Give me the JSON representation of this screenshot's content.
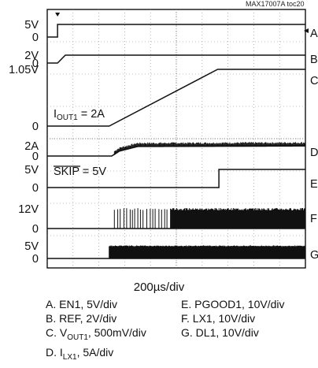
{
  "chart_data": {
    "type": "line",
    "figure_tag": "MAX17007A toc20",
    "timebase": "200µs/div",
    "time_divisions": 10,
    "x_range_us": [
      0,
      2000
    ],
    "grid": true,
    "y_labels": [
      {
        "text": "5V",
        "ref": "A"
      },
      {
        "text": "0",
        "ref": "A0"
      },
      {
        "text": "2V",
        "ref": "B"
      },
      {
        "text": "0",
        "ref": "B0"
      },
      {
        "text": "1.05V",
        "ref": "C"
      },
      {
        "text": "0",
        "ref": "C0"
      },
      {
        "text": "2A",
        "ref": "D"
      },
      {
        "text": "0",
        "ref": "D0"
      },
      {
        "text": "5V",
        "ref": "E"
      },
      {
        "text": "0",
        "ref": "E0"
      },
      {
        "text": "12V",
        "ref": "F"
      },
      {
        "text": "0",
        "ref": "F0"
      },
      {
        "text": "5V",
        "ref": "G"
      },
      {
        "text": "0",
        "ref": "G0"
      }
    ],
    "annotations": {
      "iout_prefix": "I",
      "iout_sub": "OUT1",
      "iout_suffix": " = 2A",
      "skip": "SKIP = 5V"
    },
    "series": [
      {
        "name": "A",
        "desc": "EN1",
        "scale": "5V/div",
        "unit": "V",
        "points_us_v": [
          [
            0,
            0
          ],
          [
            80,
            0
          ],
          [
            80,
            5
          ],
          [
            2000,
            5
          ]
        ]
      },
      {
        "name": "B",
        "desc": "REF",
        "scale": "2V/div",
        "unit": "V",
        "points_us_v": [
          [
            0,
            0
          ],
          [
            80,
            0
          ],
          [
            140,
            2
          ],
          [
            2000,
            2
          ]
        ]
      },
      {
        "name": "C",
        "desc": "VOUT1",
        "scale": "500mV/div",
        "unit": "V",
        "points_us_v": [
          [
            0,
            0
          ],
          [
            480,
            0
          ],
          [
            1320,
            1.05
          ],
          [
            2000,
            1.05
          ]
        ]
      },
      {
        "name": "D",
        "desc": "ILX1",
        "scale": "5A/div",
        "unit": "A",
        "points_us_v": [
          [
            0,
            0
          ],
          [
            500,
            0
          ],
          [
            560,
            1.0
          ],
          [
            700,
            1.9
          ],
          [
            2000,
            2.0
          ]
        ]
      },
      {
        "name": "E",
        "desc": "PGOOD1",
        "scale": "10V/div",
        "unit": "V",
        "points_us_v": [
          [
            0,
            0
          ],
          [
            1330,
            0
          ],
          [
            1330,
            5
          ],
          [
            2000,
            5
          ]
        ]
      },
      {
        "name": "F",
        "desc": "LX1",
        "scale": "10V/div",
        "unit": "V",
        "switching": {
          "start_us": 520,
          "end_us": 2000,
          "high_v": 12,
          "dense_after_us": 950
        }
      },
      {
        "name": "G",
        "desc": "DL1",
        "scale": "10V/div",
        "unit": "V",
        "switching": {
          "start_us": 480,
          "end_us": 2000,
          "high_v": 5,
          "dense_after_us": 480
        }
      }
    ],
    "legend": {
      "left": [
        {
          "text": "A. EN1, 5V/div"
        },
        {
          "text": "B. REF, 2V/div"
        },
        {
          "pre": "C. V",
          "sub": "OUT1",
          "post": ", 500mV/div"
        },
        {
          "pre": "D. I",
          "sub": "LX1",
          "post": ", 5A/div"
        }
      ],
      "right": [
        {
          "text": "E. PGOOD1, 10V/div"
        },
        {
          "text": "F. LX1, 10V/div"
        },
        {
          "text": "G. DL1, 10V/div"
        }
      ]
    }
  }
}
